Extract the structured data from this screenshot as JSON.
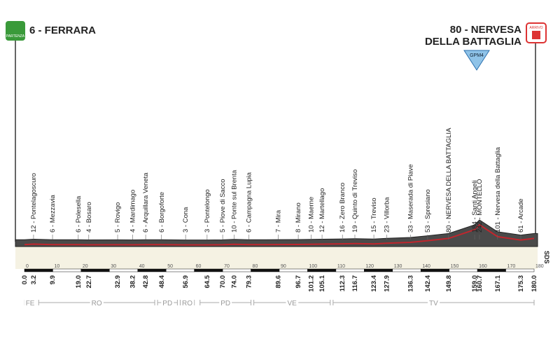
{
  "chart_data": {
    "type": "profile",
    "start_label": "6 - FERRARA",
    "start_badge": "PARTENZA",
    "finish_label": [
      "80 - NERVESA",
      "DELLA BATTAGLIA"
    ],
    "finish_badge": "ARRIVO",
    "climb_label": "GPM4",
    "credit": "SDS",
    "x": [
      0.0,
      3.2,
      9.9,
      19.0,
      22.7,
      32.9,
      38.2,
      42.8,
      48.4,
      56.9,
      64.5,
      70.0,
      74.0,
      79.3,
      89.6,
      96.7,
      101.2,
      105.1,
      112.3,
      116.7,
      123.4,
      127.9,
      136.3,
      142.4,
      149.8,
      159.0,
      160.7,
      167.1,
      175.3,
      180.0
    ],
    "x_labels": [
      "0.0",
      "3.2",
      "9.9",
      "19.0",
      "22.7",
      "32.9",
      "38.2",
      "42.8",
      "48.4",
      "56.9",
      "64.5",
      "70.0",
      "74.0",
      "79.3",
      "89.6",
      "96.7",
      "101.2",
      "105.1",
      "112.3",
      "116.7",
      "123.4",
      "127.9",
      "136.3",
      "142.4",
      "149.8",
      "159.0",
      "160.7",
      "167.1",
      "175.3",
      "180.0"
    ],
    "values": [
      6,
      12,
      6,
      6,
      4,
      5,
      4,
      6,
      6,
      3,
      3,
      5,
      10,
      6,
      7,
      8,
      10,
      12,
      16,
      19,
      15,
      23,
      33,
      53,
      80,
      184,
      242,
      101,
      61,
      80
    ],
    "point_labels": [
      null,
      "12 - Pontelagoscuro",
      "6 - Mezzavia",
      "6 - Polesella",
      "4 - Bosaro",
      "5 - Rovigo",
      "4 - Mardimago",
      "6 - Arquillara Veneta",
      "6 - Borgoforte",
      "3 - Cona",
      "3 - Pontelongo",
      "5 - Piove di Sacco",
      "10 - Ponte sul Brenta",
      "6 - Campagna Lupia",
      "7 - Mira",
      "8 - Mirano",
      "10 - Maerne",
      "12 - Martellago",
      "16 - Zero Branco",
      "19 - Quinto di Treviso",
      "15 - Treviso",
      "23 - Villorba",
      "33 - Maserada di Piave",
      "53 - Spresiano",
      "80 - NERVESA DELLA BATTAGLIA",
      "184 - Santi Angeli",
      "242 - MONTELLO",
      "101 - Nervesa della Battaglia",
      "61 - Arcade",
      null
    ],
    "xlim": [
      0,
      180
    ],
    "xticks": [
      0,
      10,
      20,
      30,
      40,
      50,
      60,
      70,
      80,
      90,
      100,
      110,
      120,
      130,
      140,
      150,
      160,
      170,
      180
    ],
    "ylim": [
      0,
      250
    ],
    "sectors": [
      {
        "label": "FE",
        "start": 0,
        "end": 4
      },
      {
        "label": "RO",
        "start": 5,
        "end": 46
      },
      {
        "label": "PD",
        "start": 47,
        "end": 54
      },
      {
        "label": "RO",
        "start": 55,
        "end": 60
      },
      {
        "label": "PD",
        "start": 62,
        "end": 80
      },
      {
        "label": "VE",
        "start": 81,
        "end": 108
      },
      {
        "label": "TV",
        "start": 109,
        "end": 180
      }
    ]
  }
}
